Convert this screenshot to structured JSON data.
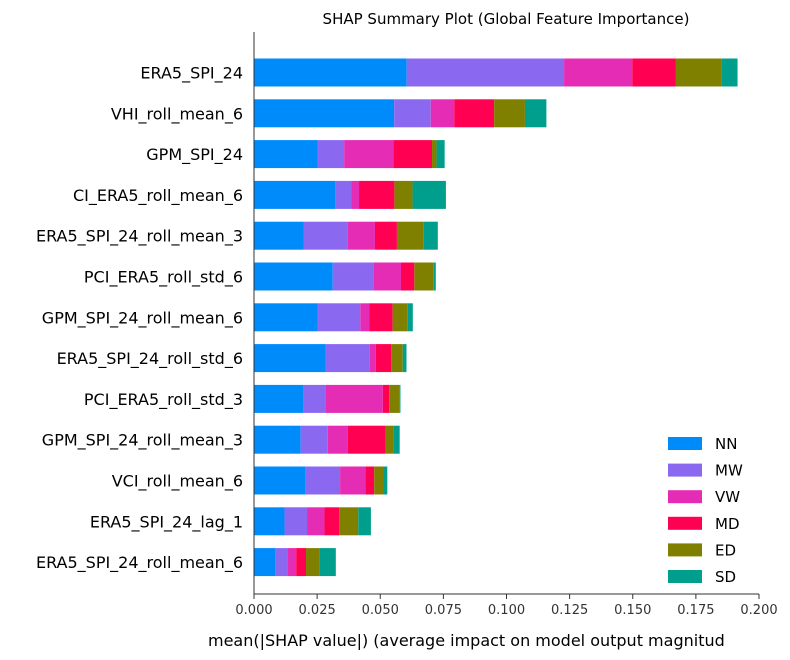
{
  "chart_data": {
    "type": "bar",
    "orientation": "horizontal",
    "stacked": true,
    "title": "SHAP Summary Plot (Global Feature Importance)",
    "xlabel": "mean(|SHAP value|) (average impact on model output magnitud",
    "ylabel": "",
    "xlim": [
      0.0,
      0.2
    ],
    "xticks": [
      "0.000",
      "0.025",
      "0.050",
      "0.075",
      "0.100",
      "0.125",
      "0.150",
      "0.175",
      "0.200"
    ],
    "legend_position": "bottom-right",
    "categories": [
      "ERA5_SPI_24",
      "VHI_roll_mean_6",
      "GPM_SPI_24",
      "CI_ERA5_roll_mean_6",
      "ERA5_SPI_24_roll_mean_3",
      "PCI_ERA5_roll_std_6",
      "GPM_SPI_24_roll_mean_6",
      "ERA5_SPI_24_roll_std_6",
      "PCI_ERA5_roll_std_3",
      "GPM_SPI_24_roll_mean_3",
      "VCI_roll_mean_6",
      "ERA5_SPI_24_lag_1",
      "ERA5_SPI_24_roll_mean_6"
    ],
    "series": [
      {
        "name": "NN",
        "color": "#008bfb",
        "values": [
          0.0605,
          0.0555,
          0.0253,
          0.0321,
          0.0196,
          0.0312,
          0.0253,
          0.0283,
          0.0197,
          0.0185,
          0.0205,
          0.0121,
          0.0086
        ]
      },
      {
        "name": "MW",
        "color": "#8b68f0",
        "values": [
          0.0623,
          0.0145,
          0.0104,
          0.0065,
          0.0176,
          0.0163,
          0.0168,
          0.0175,
          0.0088,
          0.0107,
          0.0136,
          0.0089,
          0.0046
        ]
      },
      {
        "name": "VW",
        "color": "#e52cb4",
        "values": [
          0.027,
          0.0093,
          0.0195,
          0.003,
          0.0107,
          0.0107,
          0.0035,
          0.0024,
          0.0225,
          0.008,
          0.01,
          0.0069,
          0.0035
        ]
      },
      {
        "name": "MD",
        "color": "#ff0052",
        "values": [
          0.0173,
          0.0158,
          0.0153,
          0.014,
          0.0087,
          0.0053,
          0.0093,
          0.0062,
          0.0025,
          0.015,
          0.0035,
          0.0059,
          0.0039
        ]
      },
      {
        "name": "ED",
        "color": "#808000",
        "values": [
          0.018,
          0.0122,
          0.0018,
          0.0072,
          0.0106,
          0.0077,
          0.006,
          0.0045,
          0.004,
          0.003,
          0.0035,
          0.0075,
          0.0055
        ]
      },
      {
        "name": "SD",
        "color": "#009e8c",
        "values": [
          0.0064,
          0.0085,
          0.0032,
          0.0132,
          0.0056,
          0.0008,
          0.002,
          0.0015,
          0.0005,
          0.0025,
          0.0017,
          0.005,
          0.0063
        ]
      }
    ]
  }
}
